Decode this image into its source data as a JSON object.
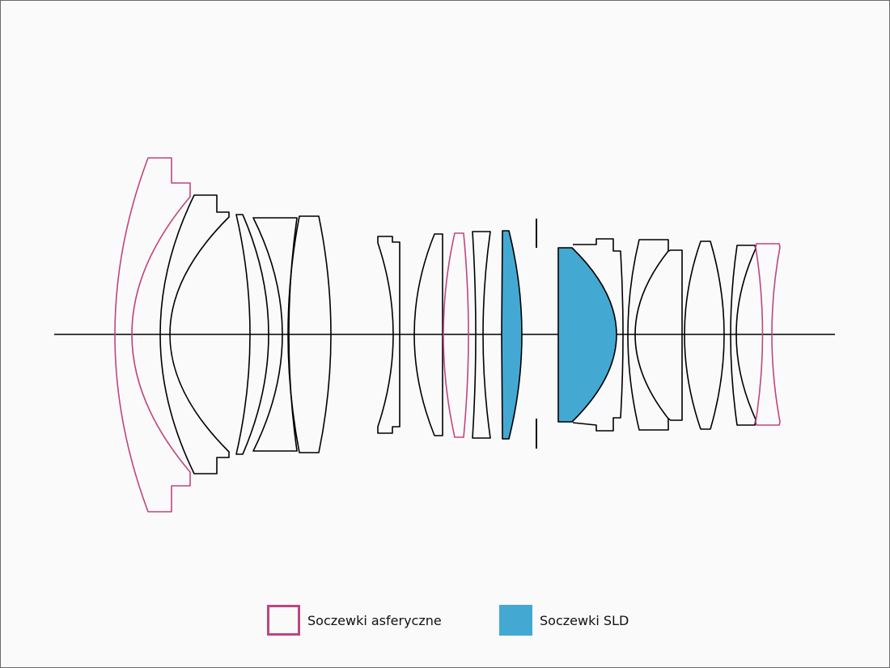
{
  "colors": {
    "aspherical": "#c0457e",
    "sld": "#43a9d2",
    "outline": "#000000",
    "background": "#fafafa"
  },
  "legend": {
    "items": [
      {
        "label": "Soczewki asferyczne",
        "swatch": "outline",
        "color": "#c0457e"
      },
      {
        "label": "Soczewki SLD",
        "swatch": "filled",
        "color": "#43a9d2"
      }
    ]
  }
}
